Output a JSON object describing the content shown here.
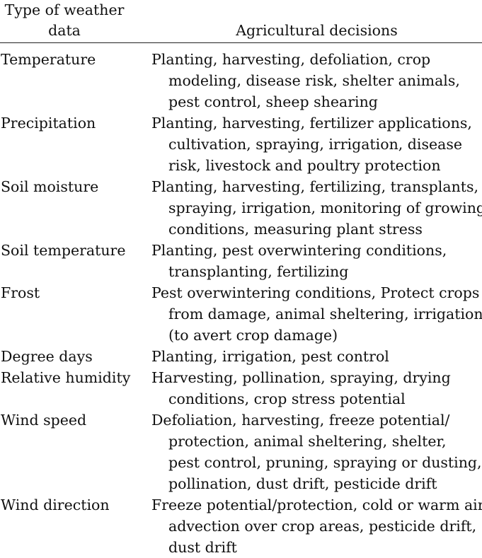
{
  "table": {
    "header": {
      "type_col": "Type of weather data",
      "type_col_lines": [
        "Type of weather",
        "data"
      ],
      "decisions_col": "Agricultural decisions"
    },
    "rows": [
      {
        "type": "Temperature",
        "decisions": [
          "Planting, harvesting, defoliation, crop",
          "modeling, disease risk, shelter animals,",
          "pest control, sheep shearing"
        ]
      },
      {
        "type": "Precipitation",
        "decisions": [
          "Planting, harvesting, fertilizer applications,",
          "cultivation, spraying, irrigation, disease",
          "risk, livestock and poultry protection"
        ]
      },
      {
        "type": "Soil moisture",
        "decisions": [
          "Planting, harvesting, fertilizing, transplants,",
          "spraying, irrigation, monitoring of growing",
          "conditions, measuring plant stress"
        ]
      },
      {
        "type": "Soil temperature",
        "decisions": [
          "Planting, pest overwintering conditions,",
          "transplanting, fertilizing"
        ]
      },
      {
        "type": "Frost",
        "decisions": [
          "Pest overwintering conditions, Protect crops",
          "from damage, animal sheltering, irrigation",
          "(to avert crop damage)"
        ]
      },
      {
        "type": "Degree days",
        "decisions": [
          "Planting, irrigation, pest control"
        ]
      },
      {
        "type": "Relative humidity",
        "decisions": [
          "Harvesting, pollination, spraying, drying",
          "conditions, crop stress potential"
        ]
      },
      {
        "type": "Wind speed",
        "decisions": [
          "Defoliation, harvesting, freeze potential/",
          "protection, animal sheltering, shelter,",
          "pest control, pruning, spraying or dusting,",
          "pollination, dust drift, pesticide drift"
        ]
      },
      {
        "type": "Wind direction",
        "decisions": [
          "Freeze potential/protection, cold or warm air",
          "advection over crop areas, pesticide drift,",
          "dust drift"
        ]
      }
    ]
  }
}
